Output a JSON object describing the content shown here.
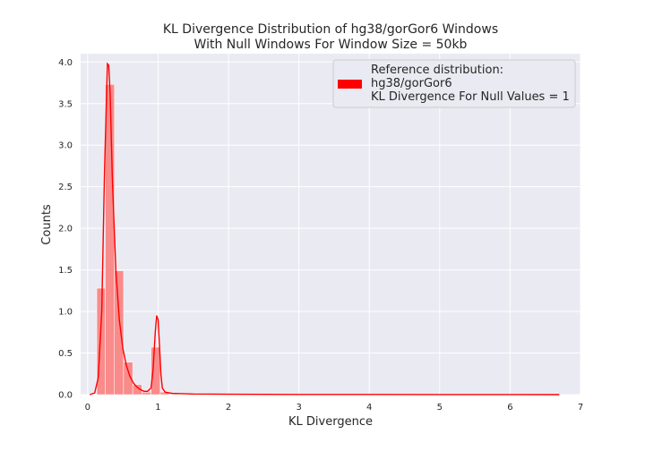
{
  "chart_data": {
    "type": "bar",
    "title_lines": [
      "KL Divergence Distribution of hg38/gorGor6 Windows",
      "With Null Windows For Window Size = 50kb"
    ],
    "xlabel": "KL Divergence",
    "ylabel": "Counts",
    "xlim": [
      -0.1,
      7.0
    ],
    "ylim": [
      0,
      4.1
    ],
    "x_ticks": [
      0,
      1,
      2,
      3,
      4,
      5,
      6,
      7
    ],
    "y_ticks": [
      0.0,
      0.5,
      1.0,
      1.5,
      2.0,
      2.5,
      3.0,
      3.5,
      4.0
    ],
    "y_tick_labels": [
      "0.0",
      "0.5",
      "1.0",
      "1.5",
      "2.0",
      "2.5",
      "3.0",
      "3.5",
      "4.0"
    ],
    "grid": true,
    "legend_placement": "top-right",
    "legend_lines": [
      "Reference distribution:",
      "hg38/gorGor6",
      "KL Divergence For Null Values = 1"
    ],
    "colors": {
      "plot_bg": "#EAEAF2",
      "grid": "#ffffff",
      "hist_fill": "#F98B8B",
      "kde_line": "#FF0000",
      "legend_patch": "#FF0000"
    },
    "series": [
      {
        "kind": "histogram",
        "bin_edges": [
          0.13,
          0.25,
          0.38,
          0.51,
          0.64,
          0.77,
          0.9,
          1.03,
          1.16,
          1.29,
          1.42,
          1.55
        ],
        "values": [
          1.28,
          3.73,
          1.49,
          0.39,
          0.12,
          0.03,
          0.57,
          0.03,
          0.01,
          0.005,
          0.005
        ]
      },
      {
        "kind": "kde",
        "x": [
          0.03,
          0.1,
          0.15,
          0.2,
          0.24,
          0.28,
          0.3,
          0.32,
          0.35,
          0.4,
          0.45,
          0.5,
          0.55,
          0.6,
          0.65,
          0.7,
          0.75,
          0.8,
          0.85,
          0.9,
          0.93,
          0.96,
          0.98,
          1.0,
          1.02,
          1.04,
          1.06,
          1.1,
          1.2,
          1.5,
          2.0,
          3.0,
          4.0,
          5.0,
          6.0,
          6.7
        ],
        "y": [
          0.0,
          0.02,
          0.2,
          1.0,
          2.7,
          3.98,
          3.96,
          3.6,
          2.6,
          1.5,
          0.9,
          0.55,
          0.35,
          0.22,
          0.14,
          0.09,
          0.06,
          0.04,
          0.04,
          0.08,
          0.3,
          0.75,
          0.95,
          0.9,
          0.6,
          0.25,
          0.08,
          0.03,
          0.015,
          0.008,
          0.004,
          0.002,
          0.002,
          0.001,
          0.001,
          0.0
        ]
      }
    ]
  }
}
